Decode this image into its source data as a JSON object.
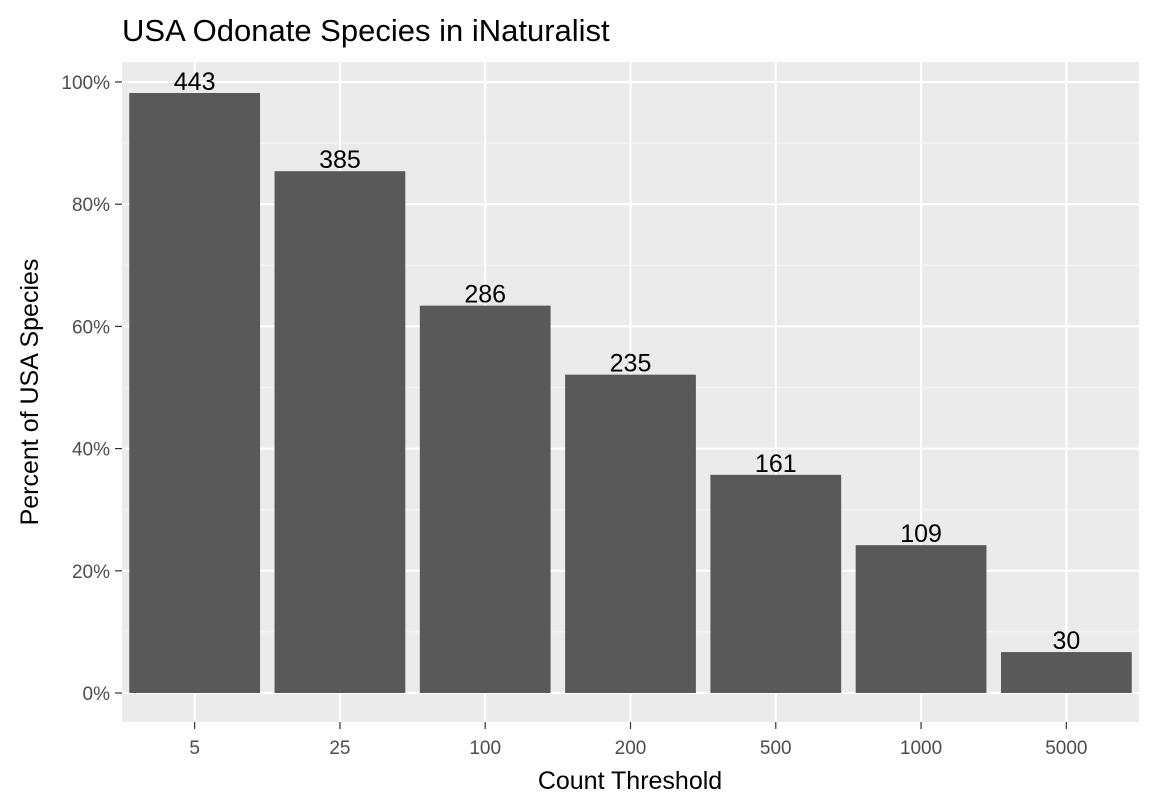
{
  "chart_data": {
    "type": "bar",
    "title": "USA Odonate Species in iNaturalist",
    "xlabel": "Count Threshold",
    "ylabel": "Percent of USA Species",
    "categories": [
      "5",
      "25",
      "100",
      "200",
      "500",
      "1000",
      "5000"
    ],
    "values": [
      98.2,
      85.4,
      63.4,
      52.1,
      35.7,
      24.2,
      6.7
    ],
    "data_labels": [
      "443",
      "385",
      "286",
      "235",
      "161",
      "109",
      "30"
    ],
    "ylim": [
      0,
      105
    ],
    "yticks": [
      0,
      20,
      40,
      60,
      80,
      100
    ],
    "ytick_labels": [
      "0%",
      "20%",
      "40%",
      "60%",
      "80%",
      "100%"
    ],
    "grid": true,
    "colors": {
      "bar": "#595959",
      "panel": "#ebebeb",
      "grid_major": "#ffffff",
      "grid_minor": "#f5f5f5",
      "tick_text": "#4d4d4d",
      "tick_line": "#333333"
    }
  }
}
